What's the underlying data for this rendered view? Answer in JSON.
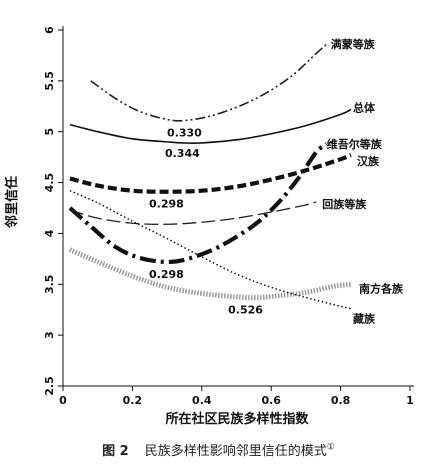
{
  "chart_data": {
    "type": "line",
    "xlabel": "所在社区民族多样性指数",
    "ylabel": "邻里信任",
    "xlim": [
      0,
      1
    ],
    "ylim": [
      2.5,
      6
    ],
    "x_ticks": [
      "0",
      "0.2",
      "0.4",
      "0.6",
      "0.8",
      "1"
    ],
    "y_ticks": [
      "2.5",
      "3",
      "3.5",
      "4",
      "4.5",
      "5",
      "5.5",
      "6"
    ],
    "grid": false,
    "series": [
      {
        "name": "满蒙等族",
        "style": "dash-dot-dot",
        "color": "#222222",
        "min_label": "0.330",
        "points": [
          [
            0.08,
            5.5
          ],
          [
            0.15,
            5.33
          ],
          [
            0.22,
            5.2
          ],
          [
            0.3,
            5.12
          ],
          [
            0.35,
            5.11
          ],
          [
            0.42,
            5.15
          ],
          [
            0.5,
            5.24
          ],
          [
            0.58,
            5.37
          ],
          [
            0.66,
            5.55
          ],
          [
            0.73,
            5.77
          ],
          [
            0.76,
            5.86
          ]
        ]
      },
      {
        "name": "总体",
        "style": "solid",
        "color": "#111111",
        "min_label": "0.344",
        "points": [
          [
            0.02,
            5.07
          ],
          [
            0.1,
            5.0
          ],
          [
            0.2,
            4.93
          ],
          [
            0.3,
            4.9
          ],
          [
            0.344,
            4.89
          ],
          [
            0.4,
            4.89
          ],
          [
            0.5,
            4.92
          ],
          [
            0.6,
            4.98
          ],
          [
            0.7,
            5.06
          ],
          [
            0.8,
            5.17
          ],
          [
            0.83,
            5.22
          ]
        ]
      },
      {
        "name": "维吾尔等族",
        "style": "long-dash-dot-thick",
        "color": "#111111",
        "min_label": "0.298",
        "points": [
          [
            0.02,
            4.25
          ],
          [
            0.08,
            4.07
          ],
          [
            0.15,
            3.87
          ],
          [
            0.22,
            3.76
          ],
          [
            0.298,
            3.72
          ],
          [
            0.36,
            3.75
          ],
          [
            0.45,
            3.87
          ],
          [
            0.55,
            4.08
          ],
          [
            0.62,
            4.3
          ],
          [
            0.68,
            4.55
          ],
          [
            0.73,
            4.8
          ],
          [
            0.76,
            4.88
          ]
        ]
      },
      {
        "name": "汉族",
        "style": "dashed-thick",
        "color": "#111111",
        "min_label": "0.298",
        "points": [
          [
            0.02,
            4.54
          ],
          [
            0.1,
            4.47
          ],
          [
            0.2,
            4.42
          ],
          [
            0.298,
            4.41
          ],
          [
            0.4,
            4.42
          ],
          [
            0.5,
            4.46
          ],
          [
            0.6,
            4.53
          ],
          [
            0.7,
            4.62
          ],
          [
            0.8,
            4.73
          ],
          [
            0.83,
            4.77
          ]
        ]
      },
      {
        "name": "回族等族",
        "style": "long-dash",
        "color": "#222222",
        "min_label": "",
        "points": [
          [
            0.02,
            4.23
          ],
          [
            0.1,
            4.15
          ],
          [
            0.2,
            4.1
          ],
          [
            0.3,
            4.09
          ],
          [
            0.4,
            4.11
          ],
          [
            0.5,
            4.15
          ],
          [
            0.6,
            4.21
          ],
          [
            0.7,
            4.28
          ],
          [
            0.73,
            4.31
          ]
        ]
      },
      {
        "name": "南方各族",
        "style": "dotted-thick-gray",
        "color": "#9a9a9a",
        "min_label": "0.526",
        "points": [
          [
            0.02,
            3.84
          ],
          [
            0.1,
            3.72
          ],
          [
            0.2,
            3.58
          ],
          [
            0.3,
            3.47
          ],
          [
            0.4,
            3.41
          ],
          [
            0.526,
            3.37
          ],
          [
            0.6,
            3.38
          ],
          [
            0.7,
            3.42
          ],
          [
            0.78,
            3.48
          ],
          [
            0.83,
            3.5
          ]
        ]
      },
      {
        "name": "藏族",
        "style": "fine-dotted",
        "color": "#111111",
        "min_label": "",
        "points": [
          [
            0.02,
            4.42
          ],
          [
            0.1,
            4.3
          ],
          [
            0.2,
            4.12
          ],
          [
            0.3,
            3.95
          ],
          [
            0.4,
            3.77
          ],
          [
            0.5,
            3.6
          ],
          [
            0.6,
            3.47
          ],
          [
            0.7,
            3.37
          ],
          [
            0.78,
            3.3
          ],
          [
            0.83,
            3.26
          ]
        ]
      }
    ]
  },
  "caption": {
    "figure_number": "图 2",
    "text": "民族多样性影响邻里信任的模式",
    "footnote_mark": "①"
  }
}
